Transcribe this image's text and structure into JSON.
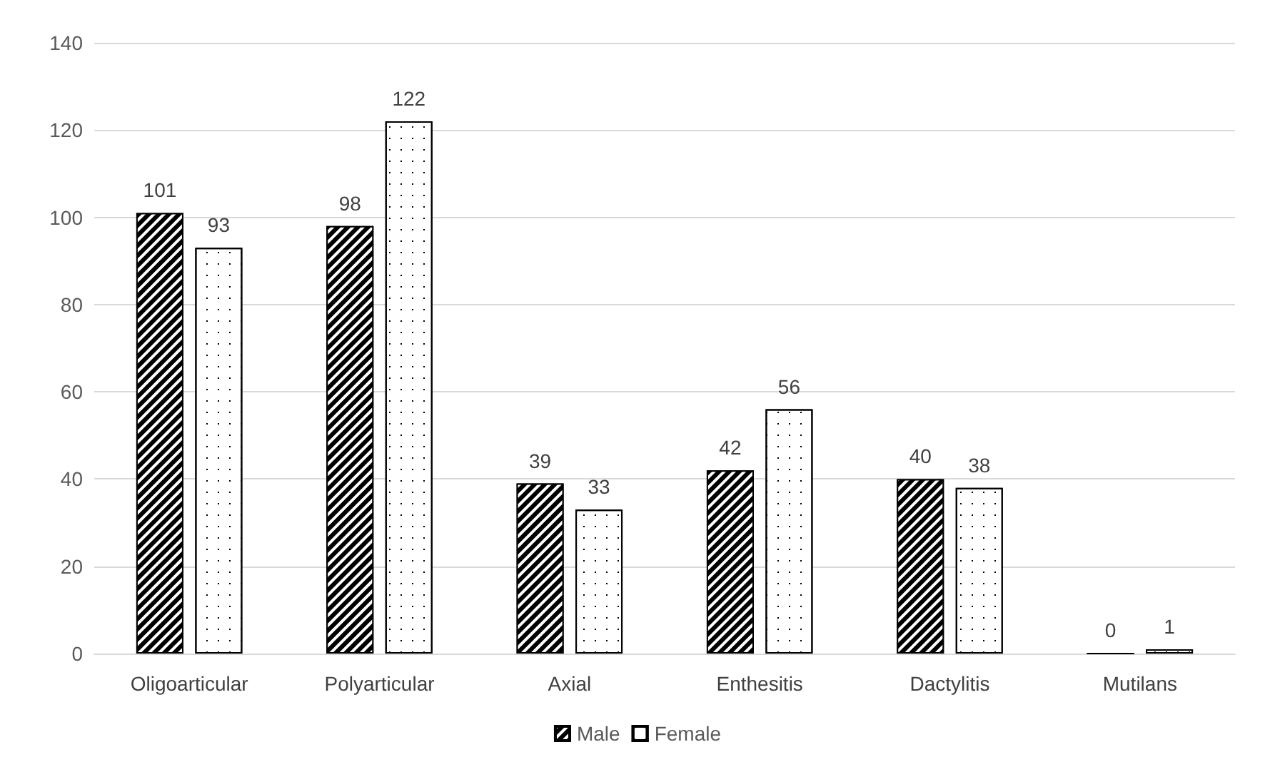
{
  "chart_data": {
    "type": "bar",
    "categories": [
      "Oligoarticular",
      "Polyarticular",
      "Axial",
      "Enthesitis",
      "Dactylitis",
      "Mutilans"
    ],
    "series": [
      {
        "name": "Male",
        "color": "#000000",
        "values": [
          101,
          98,
          39,
          42,
          40,
          0
        ]
      },
      {
        "name": "Female",
        "color": "#ffffff",
        "values": [
          93,
          122,
          33,
          56,
          38,
          1
        ]
      }
    ],
    "ylim": [
      0,
      140
    ],
    "yticks": [
      0,
      20,
      40,
      60,
      80,
      100,
      120,
      140
    ],
    "grid": "y",
    "legend": "bottom",
    "data_labels": true
  }
}
